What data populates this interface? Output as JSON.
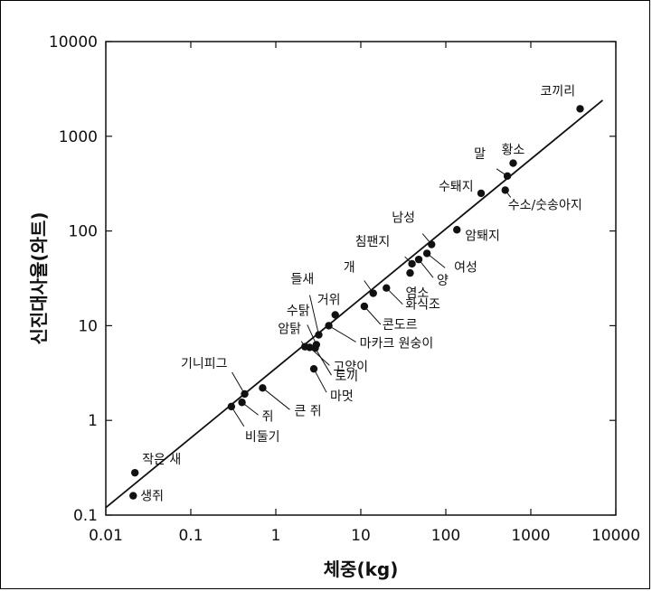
{
  "chart_data": {
    "type": "scatter",
    "xlabel": "체중(kg)",
    "ylabel": "신진대사율(와트)",
    "xscale": "log",
    "yscale": "log",
    "xlim": [
      0.01,
      10000
    ],
    "ylim": [
      0.1,
      10000
    ],
    "grid": false,
    "x_ticks": [
      "0.01",
      "0.1",
      "1",
      "10",
      "100",
      "1000",
      "10000"
    ],
    "y_ticks": [
      "0.1",
      "1",
      "10",
      "100",
      "1000",
      "10000"
    ],
    "fit_line": {
      "x": [
        0.01,
        7000
      ],
      "y": [
        0.12,
        2400
      ]
    },
    "points": [
      {
        "label": "생쥐",
        "x": 0.021,
        "y": 0.16
      },
      {
        "label": "작은 새",
        "x": 0.022,
        "y": 0.28
      },
      {
        "label": "비둘기",
        "x": 0.3,
        "y": 1.4
      },
      {
        "label": "쥐",
        "x": 0.4,
        "y": 1.55
      },
      {
        "label": "기니피그",
        "x": 0.43,
        "y": 1.9
      },
      {
        "label": "큰 쥐",
        "x": 0.7,
        "y": 2.2
      },
      {
        "label": "마멋",
        "x": 2.8,
        "y": 3.5
      },
      {
        "label": "토끼",
        "x": 2.9,
        "y": 5.8
      },
      {
        "label": "고양이",
        "x": 2.5,
        "y": 5.9
      },
      {
        "label": "암탉",
        "x": 2.2,
        "y": 6.0
      },
      {
        "label": "수탉",
        "x": 3.0,
        "y": 6.3
      },
      {
        "label": "들새",
        "x": 3.2,
        "y": 8.0
      },
      {
        "label": "마카크 원숭이",
        "x": 4.2,
        "y": 10.0
      },
      {
        "label": "거위",
        "x": 5.0,
        "y": 13.0
      },
      {
        "label": "콘도르",
        "x": 11.0,
        "y": 16.0
      },
      {
        "label": "개",
        "x": 14.0,
        "y": 22.0
      },
      {
        "label": "화식조",
        "x": 20.0,
        "y": 25.0
      },
      {
        "label": "염소",
        "x": 38.0,
        "y": 36.0
      },
      {
        "label": "침팬지",
        "x": 40.0,
        "y": 45.0
      },
      {
        "label": "양",
        "x": 48.0,
        "y": 50.0
      },
      {
        "label": "남성",
        "x": 68.0,
        "y": 72.0
      },
      {
        "label": "여성",
        "x": 60.0,
        "y": 58.0
      },
      {
        "label": "암퇘지",
        "x": 135.0,
        "y": 103.0
      },
      {
        "label": "수퇘지",
        "x": 260.0,
        "y": 250.0
      },
      {
        "label": "수소/숫송아지",
        "x": 500.0,
        "y": 270.0
      },
      {
        "label": "말",
        "x": 530.0,
        "y": 380.0
      },
      {
        "label": "황소",
        "x": 620.0,
        "y": 520.0
      },
      {
        "label": "코끼리",
        "x": 3800.0,
        "y": 1950.0
      }
    ]
  }
}
